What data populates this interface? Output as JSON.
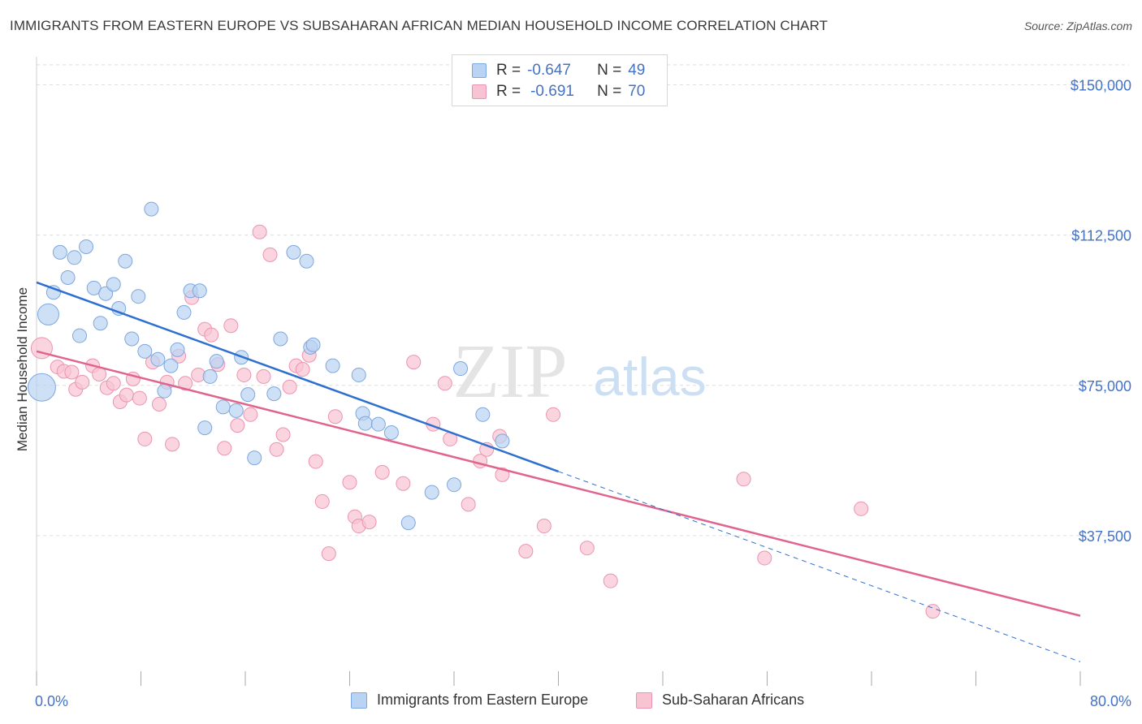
{
  "header": {
    "title": "IMMIGRANTS FROM EASTERN EUROPE VS SUBSAHARAN AFRICAN MEDIAN HOUSEHOLD INCOME CORRELATION CHART",
    "source": "Source: ZipAtlas.com"
  },
  "watermark": {
    "zip": "ZIP",
    "atlas": "atlas"
  },
  "legend_top": {
    "rows": [
      {
        "r_label": "R =",
        "r_value": "-0.647",
        "n_label": "N =",
        "n_value": "49"
      },
      {
        "r_label": "R =",
        "r_value": "-0.691",
        "n_label": "N =",
        "n_value": "70"
      }
    ]
  },
  "legend_bottom": {
    "items": [
      "Immigrants from Eastern Europe",
      "Sub-Saharan Africans"
    ]
  },
  "colors": {
    "blue_fill": "#b9d3f2",
    "blue_stroke": "#7ea7de",
    "blue_line": "#2f6fd0",
    "pink_fill": "#f8c3d3",
    "pink_stroke": "#eb94b0",
    "pink_line": "#e0648e",
    "axis_label": "#4472c4",
    "grid": "#dddddd"
  },
  "chart_data": {
    "type": "scatter",
    "title": "IMMIGRANTS FROM EASTERN EUROPE VS SUBSAHARAN AFRICAN MEDIAN HOUSEHOLD INCOME CORRELATION CHART",
    "xlabel": "",
    "ylabel": "Median Household Income",
    "xlim": [
      0,
      80
    ],
    "ylim": [
      0,
      157000
    ],
    "x_tick_labels": [
      "0.0%",
      "80.0%"
    ],
    "y_ticks": [
      37500,
      75000,
      112500,
      150000
    ],
    "y_tick_labels": [
      "$37,500",
      "$75,000",
      "$112,500",
      "$150,000"
    ],
    "grid": "horizontal dashed",
    "series": [
      {
        "name": "Immigrants from Eastern Europe",
        "color": "blue",
        "trend": {
          "x": [
            0,
            40
          ],
          "y": [
            100700,
            53500
          ],
          "extended_to": [
            80,
            6000
          ]
        },
        "points": [
          {
            "x": 0.4,
            "y": 74500,
            "s": 3
          },
          {
            "x": 0.9,
            "y": 92700,
            "s": 2
          },
          {
            "x": 1.3,
            "y": 98200,
            "s": 1
          },
          {
            "x": 1.8,
            "y": 108200,
            "s": 1
          },
          {
            "x": 2.4,
            "y": 101900,
            "s": 1
          },
          {
            "x": 2.9,
            "y": 106900,
            "s": 1
          },
          {
            "x": 3.3,
            "y": 87400,
            "s": 1
          },
          {
            "x": 3.8,
            "y": 109600,
            "s": 1
          },
          {
            "x": 4.4,
            "y": 99300,
            "s": 1
          },
          {
            "x": 4.9,
            "y": 90500,
            "s": 1
          },
          {
            "x": 5.3,
            "y": 97900,
            "s": 1
          },
          {
            "x": 5.9,
            "y": 100200,
            "s": 1
          },
          {
            "x": 6.3,
            "y": 94200,
            "s": 1
          },
          {
            "x": 6.8,
            "y": 106000,
            "s": 1
          },
          {
            "x": 7.3,
            "y": 86600,
            "s": 1
          },
          {
            "x": 7.8,
            "y": 97200,
            "s": 1
          },
          {
            "x": 8.3,
            "y": 83500,
            "s": 1
          },
          {
            "x": 8.8,
            "y": 119000,
            "s": 1
          },
          {
            "x": 9.3,
            "y": 81500,
            "s": 1
          },
          {
            "x": 9.8,
            "y": 73600,
            "s": 1
          },
          {
            "x": 10.3,
            "y": 79900,
            "s": 1
          },
          {
            "x": 10.8,
            "y": 83900,
            "s": 1
          },
          {
            "x": 11.3,
            "y": 93200,
            "s": 1
          },
          {
            "x": 11.8,
            "y": 98600,
            "s": 1
          },
          {
            "x": 12.5,
            "y": 98600,
            "s": 1
          },
          {
            "x": 12.9,
            "y": 64400,
            "s": 1
          },
          {
            "x": 13.3,
            "y": 77200,
            "s": 1
          },
          {
            "x": 13.8,
            "y": 81000,
            "s": 1
          },
          {
            "x": 14.3,
            "y": 69600,
            "s": 1
          },
          {
            "x": 15.3,
            "y": 68700,
            "s": 1
          },
          {
            "x": 15.7,
            "y": 82000,
            "s": 1
          },
          {
            "x": 16.2,
            "y": 72700,
            "s": 1
          },
          {
            "x": 16.7,
            "y": 56900,
            "s": 1
          },
          {
            "x": 18.2,
            "y": 72900,
            "s": 1
          },
          {
            "x": 18.7,
            "y": 86600,
            "s": 1
          },
          {
            "x": 19.7,
            "y": 108200,
            "s": 1
          },
          {
            "x": 20.7,
            "y": 106000,
            "s": 1
          },
          {
            "x": 21.0,
            "y": 84500,
            "s": 1
          },
          {
            "x": 21.2,
            "y": 85100,
            "s": 1
          },
          {
            "x": 22.7,
            "y": 79900,
            "s": 1
          },
          {
            "x": 24.7,
            "y": 77600,
            "s": 1
          },
          {
            "x": 25.0,
            "y": 68000,
            "s": 1
          },
          {
            "x": 25.2,
            "y": 65500,
            "s": 1
          },
          {
            "x": 26.2,
            "y": 65300,
            "s": 1
          },
          {
            "x": 27.2,
            "y": 63200,
            "s": 1
          },
          {
            "x": 28.5,
            "y": 40700,
            "s": 1
          },
          {
            "x": 30.3,
            "y": 48300,
            "s": 1
          },
          {
            "x": 32.0,
            "y": 50200,
            "s": 1
          },
          {
            "x": 32.5,
            "y": 79200,
            "s": 1
          },
          {
            "x": 34.2,
            "y": 67700,
            "s": 1
          },
          {
            "x": 35.7,
            "y": 61100,
            "s": 1
          }
        ]
      },
      {
        "name": "Sub-Saharan Africans",
        "color": "pink",
        "trend": {
          "x": [
            0,
            80
          ],
          "y": [
            83500,
            17500
          ]
        },
        "points": [
          {
            "x": 0.4,
            "y": 84300,
            "s": 2
          },
          {
            "x": 1.6,
            "y": 79600,
            "s": 1
          },
          {
            "x": 2.1,
            "y": 78500,
            "s": 1
          },
          {
            "x": 2.7,
            "y": 78300,
            "s": 1
          },
          {
            "x": 3.0,
            "y": 74000,
            "s": 1
          },
          {
            "x": 3.5,
            "y": 75800,
            "s": 1
          },
          {
            "x": 4.3,
            "y": 79900,
            "s": 1
          },
          {
            "x": 4.8,
            "y": 77800,
            "s": 1
          },
          {
            "x": 5.4,
            "y": 74400,
            "s": 1
          },
          {
            "x": 5.9,
            "y": 75500,
            "s": 1
          },
          {
            "x": 6.4,
            "y": 70900,
            "s": 1
          },
          {
            "x": 6.9,
            "y": 72600,
            "s": 1
          },
          {
            "x": 7.4,
            "y": 76600,
            "s": 1
          },
          {
            "x": 7.9,
            "y": 71800,
            "s": 1
          },
          {
            "x": 8.3,
            "y": 61600,
            "s": 1
          },
          {
            "x": 8.9,
            "y": 80800,
            "s": 1
          },
          {
            "x": 9.4,
            "y": 70300,
            "s": 1
          },
          {
            "x": 10.0,
            "y": 75800,
            "s": 1
          },
          {
            "x": 10.4,
            "y": 60300,
            "s": 1
          },
          {
            "x": 10.9,
            "y": 82300,
            "s": 1
          },
          {
            "x": 11.4,
            "y": 75500,
            "s": 1
          },
          {
            "x": 11.9,
            "y": 96900,
            "s": 1
          },
          {
            "x": 12.4,
            "y": 77600,
            "s": 1
          },
          {
            "x": 12.9,
            "y": 89000,
            "s": 1
          },
          {
            "x": 13.4,
            "y": 87600,
            "s": 1
          },
          {
            "x": 13.9,
            "y": 80200,
            "s": 1
          },
          {
            "x": 14.4,
            "y": 59300,
            "s": 1
          },
          {
            "x": 14.9,
            "y": 89900,
            "s": 1
          },
          {
            "x": 15.4,
            "y": 65000,
            "s": 1
          },
          {
            "x": 15.9,
            "y": 77600,
            "s": 1
          },
          {
            "x": 16.4,
            "y": 67700,
            "s": 1
          },
          {
            "x": 17.1,
            "y": 113300,
            "s": 1
          },
          {
            "x": 17.4,
            "y": 77200,
            "s": 1
          },
          {
            "x": 17.9,
            "y": 107600,
            "s": 1
          },
          {
            "x": 18.4,
            "y": 59000,
            "s": 1
          },
          {
            "x": 18.9,
            "y": 62700,
            "s": 1
          },
          {
            "x": 19.4,
            "y": 74600,
            "s": 1
          },
          {
            "x": 19.9,
            "y": 79900,
            "s": 1
          },
          {
            "x": 20.4,
            "y": 79000,
            "s": 1
          },
          {
            "x": 20.9,
            "y": 82500,
            "s": 1
          },
          {
            "x": 21.4,
            "y": 56000,
            "s": 1
          },
          {
            "x": 21.9,
            "y": 46000,
            "s": 1
          },
          {
            "x": 22.4,
            "y": 33000,
            "s": 1
          },
          {
            "x": 22.9,
            "y": 67200,
            "s": 1
          },
          {
            "x": 24.0,
            "y": 50800,
            "s": 1
          },
          {
            "x": 24.4,
            "y": 42200,
            "s": 1
          },
          {
            "x": 24.7,
            "y": 39900,
            "s": 1
          },
          {
            "x": 25.5,
            "y": 40900,
            "s": 1
          },
          {
            "x": 26.5,
            "y": 53300,
            "s": 1
          },
          {
            "x": 28.1,
            "y": 50500,
            "s": 1
          },
          {
            "x": 28.9,
            "y": 80800,
            "s": 1
          },
          {
            "x": 30.4,
            "y": 65300,
            "s": 1
          },
          {
            "x": 31.3,
            "y": 75500,
            "s": 1
          },
          {
            "x": 31.7,
            "y": 61600,
            "s": 1
          },
          {
            "x": 33.1,
            "y": 45300,
            "s": 1
          },
          {
            "x": 34.0,
            "y": 56100,
            "s": 1
          },
          {
            "x": 34.5,
            "y": 59000,
            "s": 1
          },
          {
            "x": 35.5,
            "y": 62300,
            "s": 1
          },
          {
            "x": 35.7,
            "y": 52700,
            "s": 1
          },
          {
            "x": 37.5,
            "y": 33600,
            "s": 1
          },
          {
            "x": 38.9,
            "y": 39900,
            "s": 1
          },
          {
            "x": 39.6,
            "y": 67700,
            "s": 1
          },
          {
            "x": 42.2,
            "y": 34400,
            "s": 1
          },
          {
            "x": 44.0,
            "y": 26200,
            "s": 1
          },
          {
            "x": 54.2,
            "y": 51600,
            "s": 1
          },
          {
            "x": 55.8,
            "y": 31900,
            "s": 1
          },
          {
            "x": 63.2,
            "y": 44200,
            "s": 1
          },
          {
            "x": 68.7,
            "y": 18600,
            "s": 1
          }
        ]
      }
    ]
  }
}
